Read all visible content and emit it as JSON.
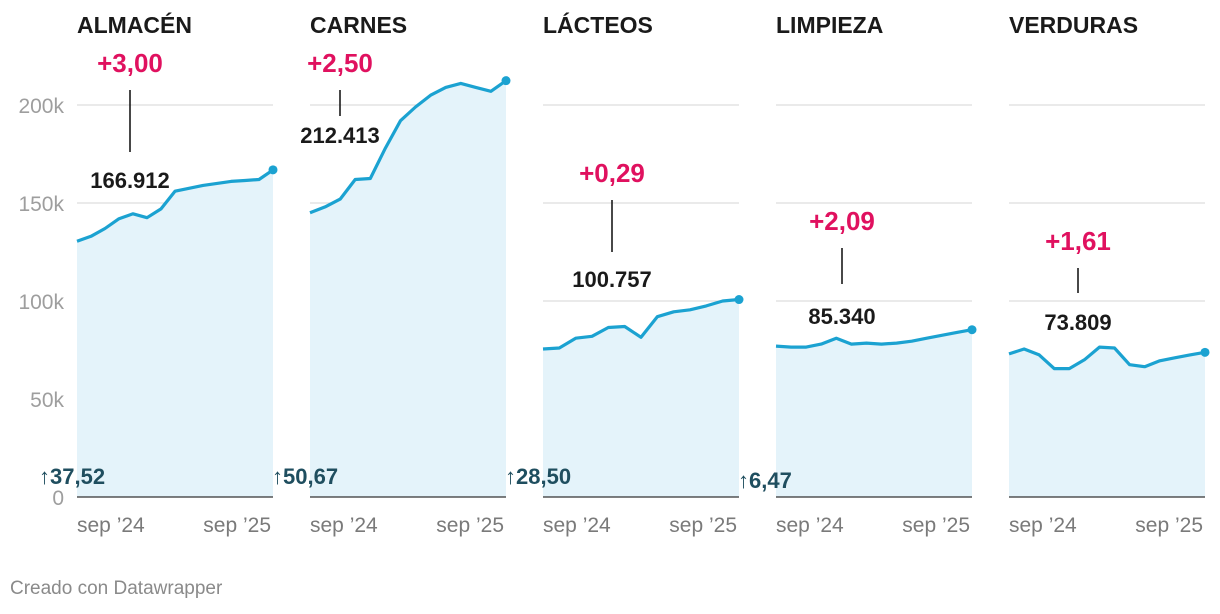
{
  "chart_data": {
    "type": "area",
    "y_axis": {
      "ticks": [
        "0",
        "50k",
        "100k",
        "150k",
        "200k"
      ],
      "tick_values": [
        0,
        50000,
        100000,
        150000,
        200000
      ],
      "ylim": [
        0,
        225000
      ]
    },
    "x_axis": {
      "ticks": [
        "sep ’24",
        "sep ’25"
      ],
      "range": [
        "2024-05",
        "2025-11"
      ]
    },
    "grid": true,
    "panels": [
      {
        "title": "ALMACÉN",
        "change_label": "+3,00",
        "last_value_label": "166.912",
        "since_label": "37,52",
        "values": [
          130500,
          133000,
          137000,
          142000,
          144500,
          142500,
          147000,
          156000,
          157500,
          159000,
          160000,
          161000,
          161500,
          162000,
          166912
        ]
      },
      {
        "title": "CARNES",
        "change_label": "+2,50",
        "last_value_label": "212.413",
        "since_label": "50,67",
        "values": [
          145000,
          148000,
          152000,
          162000,
          162500,
          178000,
          192000,
          199000,
          205000,
          209000,
          211000,
          209000,
          207000,
          212413
        ]
      },
      {
        "title": "LÁCTEOS",
        "change_label": "+0,29",
        "last_value_label": "100.757",
        "since_label": "28,50",
        "values": [
          75500,
          76000,
          81000,
          82000,
          86500,
          87000,
          81500,
          92000,
          94500,
          95500,
          97500,
          100000,
          100757
        ]
      },
      {
        "title": "LIMPIEZA",
        "change_label": "+2,09",
        "last_value_label": "85.340",
        "since_label": "6,47",
        "values": [
          77000,
          76500,
          76500,
          78000,
          81000,
          78000,
          78500,
          78000,
          78500,
          79500,
          81000,
          82500,
          84000,
          85340
        ]
      },
      {
        "title": "VERDURAS",
        "change_label": "+1,61",
        "last_value_label": "73.809",
        "since_label": "",
        "values": [
          73000,
          75500,
          72500,
          65500,
          65500,
          70000,
          76500,
          76000,
          67500,
          66500,
          69500,
          71000,
          72500,
          73809
        ]
      }
    ]
  },
  "colors": {
    "line": "#1ba2d1",
    "area": "#e4f3fa",
    "change": "#e0115f",
    "since": "#1f4e5f",
    "grid": "#dddddd"
  },
  "credit": "Creado con Datawrapper"
}
